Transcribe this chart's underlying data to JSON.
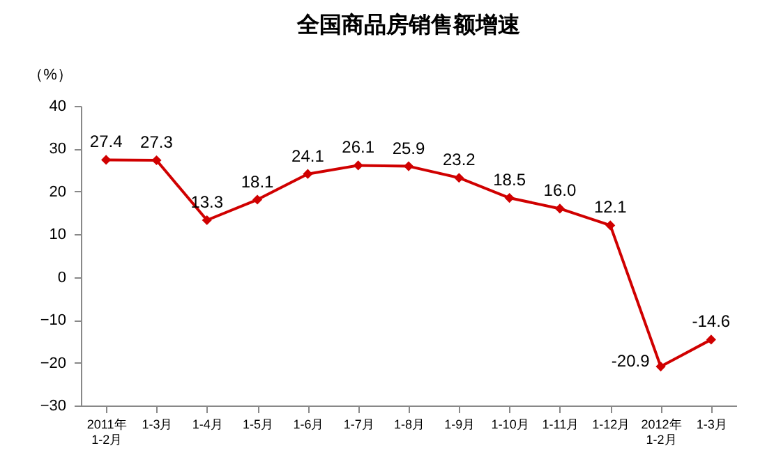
{
  "chart_data": {
    "type": "line",
    "title": "全国商品房销售额增速",
    "ylabel": "（%）",
    "categories": [
      "2011年\n1-2月",
      "1-3月",
      "1-4月",
      "1-5月",
      "1-6月",
      "1-7月",
      "1-8月",
      "1-9月",
      "1-10月",
      "1-11月",
      "1-12月",
      "2012年\n1-2月",
      "1-3月"
    ],
    "series": [
      {
        "color": "#d00000",
        "values": [
          27.4,
          27.3,
          13.3,
          18.1,
          24.1,
          26.1,
          25.9,
          23.2,
          18.5,
          16.0,
          12.1,
          -20.9,
          -14.6
        ],
        "value_labels": [
          "27.4",
          "27.3",
          "13.3",
          "18.1",
          "24.1",
          "26.1",
          "25.9",
          "23.2",
          "18.5",
          "16.0",
          "12.1",
          "-20.9",
          "-14.6"
        ]
      }
    ],
    "ylim": [
      -30,
      40
    ],
    "yticks": [
      -30,
      -20,
      -10,
      0,
      10,
      20,
      30,
      40
    ],
    "grid": false,
    "marker": "diamond",
    "line_style": "solid"
  }
}
